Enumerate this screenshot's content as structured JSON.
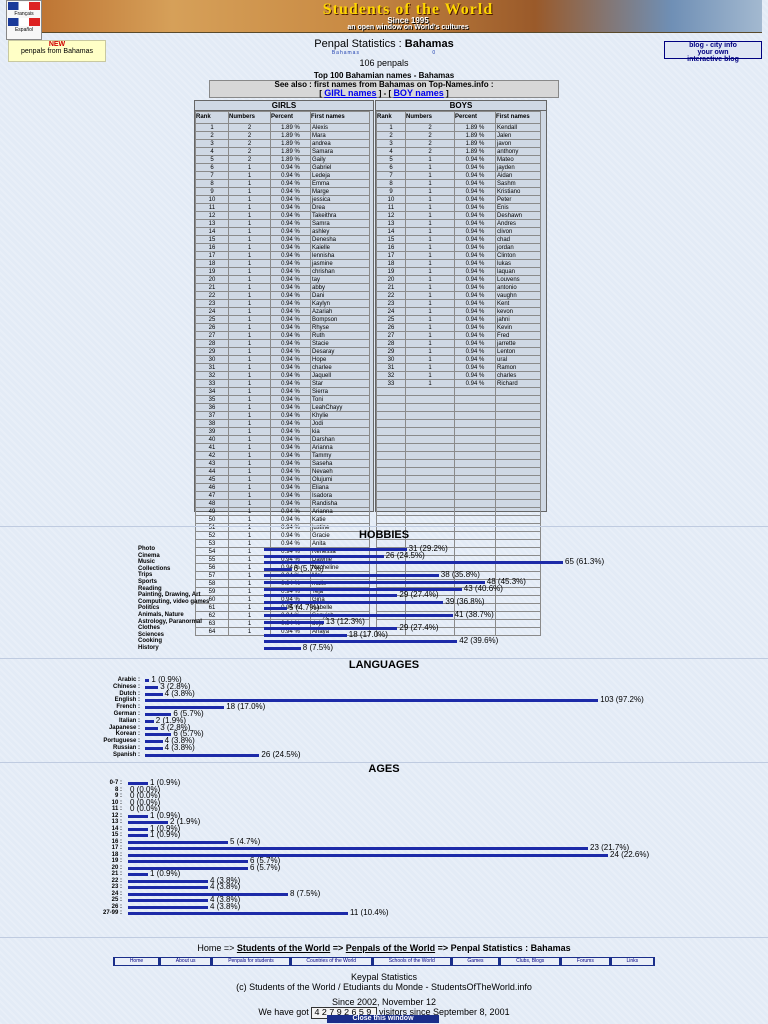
{
  "banner": {
    "title": "Students of the World",
    "since": "Since 1995",
    "tagline": "an open window on World's cultures"
  },
  "flags": {
    "fr": "Français",
    "es": "Español"
  },
  "penpal_box": {
    "new": "NEW",
    "text": "penpals from Bahamas"
  },
  "blog_box": {
    "line1": "blog - city info",
    "line2": "your own",
    "line3": "interactive blog"
  },
  "page": {
    "title_prefix": "Penpal Statistics :",
    "title_country": "Bahamas",
    "subtitle": "Bahamas",
    "subtitle_count": "0",
    "count": "106 penpals",
    "top_names": "Top 100 Bahamian names - Bahamas",
    "see_also": "See also : first names from Bahamas on Top-Names.info :",
    "girl_link": "GIRL names",
    "boy_link": "BOY names"
  },
  "tables": {
    "girls_header": "GIRLS",
    "boys_header": "BOYS",
    "columns": [
      "Rank",
      "Numbers",
      "Percent",
      "First names"
    ],
    "girls": [
      [
        "1",
        "2",
        "1.89 %",
        "Alexis"
      ],
      [
        "2",
        "2",
        "1.89 %",
        "Mara"
      ],
      [
        "3",
        "2",
        "1.89 %",
        "andrea"
      ],
      [
        "4",
        "2",
        "1.89 %",
        "Samara"
      ],
      [
        "5",
        "2",
        "1.89 %",
        "Gaily"
      ],
      [
        "6",
        "1",
        "0.94 %",
        "Gabriel"
      ],
      [
        "7",
        "1",
        "0.94 %",
        "Ledeja"
      ],
      [
        "8",
        "1",
        "0.94 %",
        "Emma"
      ],
      [
        "9",
        "1",
        "0.94 %",
        "Marge"
      ],
      [
        "10",
        "1",
        "0.94 %",
        "jessica"
      ],
      [
        "11",
        "1",
        "0.94 %",
        "Drea"
      ],
      [
        "12",
        "1",
        "0.94 %",
        "Takeithra"
      ],
      [
        "13",
        "1",
        "0.94 %",
        "Samra"
      ],
      [
        "14",
        "1",
        "0.94 %",
        "ashley"
      ],
      [
        "15",
        "1",
        "0.94 %",
        "Denesha"
      ],
      [
        "16",
        "1",
        "0.94 %",
        "Kaielle"
      ],
      [
        "17",
        "1",
        "0.94 %",
        "lennisha"
      ],
      [
        "18",
        "1",
        "0.94 %",
        "jasmine"
      ],
      [
        "19",
        "1",
        "0.94 %",
        "chrishan"
      ],
      [
        "20",
        "1",
        "0.94 %",
        "tay"
      ],
      [
        "21",
        "1",
        "0.94 %",
        "abby"
      ],
      [
        "22",
        "1",
        "0.94 %",
        "Dani"
      ],
      [
        "23",
        "1",
        "0.94 %",
        "Kaylyn"
      ],
      [
        "24",
        "1",
        "0.94 %",
        "Azariah"
      ],
      [
        "25",
        "1",
        "0.94 %",
        "Bompson"
      ],
      [
        "26",
        "1",
        "0.94 %",
        "Rhyse"
      ],
      [
        "27",
        "1",
        "0.94 %",
        "Ruth"
      ],
      [
        "28",
        "1",
        "0.94 %",
        "Stacie"
      ],
      [
        "29",
        "1",
        "0.94 %",
        "Desaray"
      ],
      [
        "30",
        "1",
        "0.94 %",
        "Hope"
      ],
      [
        "31",
        "1",
        "0.94 %",
        "charlee"
      ],
      [
        "32",
        "1",
        "0.94 %",
        "Jaquell"
      ],
      [
        "33",
        "1",
        "0.94 %",
        "Star"
      ],
      [
        "34",
        "1",
        "0.94 %",
        "Sierra"
      ],
      [
        "35",
        "1",
        "0.94 %",
        "Toni"
      ],
      [
        "36",
        "1",
        "0.94 %",
        "LeahChayy"
      ],
      [
        "37",
        "1",
        "0.94 %",
        "Khylie"
      ],
      [
        "38",
        "1",
        "0.94 %",
        "Jodi"
      ],
      [
        "39",
        "1",
        "0.94 %",
        "kia"
      ],
      [
        "40",
        "1",
        "0.94 %",
        "Darshan"
      ],
      [
        "41",
        "1",
        "0.94 %",
        "Arianna"
      ],
      [
        "42",
        "1",
        "0.94 %",
        "Tammy"
      ],
      [
        "43",
        "1",
        "0.94 %",
        "Saseha"
      ],
      [
        "44",
        "1",
        "0.94 %",
        "Nevaeh"
      ],
      [
        "45",
        "1",
        "0.94 %",
        "Olujumi"
      ],
      [
        "46",
        "1",
        "0.94 %",
        "Eliana"
      ],
      [
        "47",
        "1",
        "0.94 %",
        "Isadora"
      ],
      [
        "48",
        "1",
        "0.94 %",
        "Randisha"
      ],
      [
        "49",
        "1",
        "0.94 %",
        "Arianna"
      ],
      [
        "50",
        "1",
        "0.94 %",
        "Katie"
      ],
      [
        "51",
        "1",
        "0.94 %",
        "justine"
      ],
      [
        "52",
        "1",
        "0.94 %",
        "Gracie"
      ],
      [
        "53",
        "1",
        "0.94 %",
        "Anita"
      ],
      [
        "54",
        "1",
        "0.94 %",
        "Renessa"
      ],
      [
        "55",
        "1",
        "0.94 %",
        "Dawnie"
      ],
      [
        "56",
        "1",
        "0.94 %",
        "Nacheline"
      ],
      [
        "57",
        "1",
        "0.94 %",
        "Mai"
      ],
      [
        "58",
        "1",
        "0.94 %",
        "maile"
      ],
      [
        "59",
        "1",
        "0.94 %",
        "Teja"
      ],
      [
        "60",
        "1",
        "0.94 %",
        "Gina"
      ],
      [
        "61",
        "1",
        "0.94 %",
        "isabelle"
      ],
      [
        "62",
        "1",
        "0.94 %",
        "Sanyjah"
      ],
      [
        "63",
        "1",
        "0.94 %",
        "deja"
      ],
      [
        "64",
        "1",
        "0.94 %",
        "Anaya"
      ]
    ],
    "boys": [
      [
        "1",
        "2",
        "1.89 %",
        "Kendall"
      ],
      [
        "2",
        "2",
        "1.89 %",
        "Jalen"
      ],
      [
        "3",
        "2",
        "1.89 %",
        "javon"
      ],
      [
        "4",
        "2",
        "1.89 %",
        "anthony"
      ],
      [
        "5",
        "1",
        "0.94 %",
        "Mateo"
      ],
      [
        "6",
        "1",
        "0.94 %",
        "jayden"
      ],
      [
        "7",
        "1",
        "0.94 %",
        "Aidan"
      ],
      [
        "8",
        "1",
        "0.94 %",
        "Sashm"
      ],
      [
        "9",
        "1",
        "0.94 %",
        "Kristiano"
      ],
      [
        "10",
        "1",
        "0.94 %",
        "Peter"
      ],
      [
        "11",
        "1",
        "0.94 %",
        "Enis"
      ],
      [
        "12",
        "1",
        "0.94 %",
        "Deshawn"
      ],
      [
        "13",
        "1",
        "0.94 %",
        "Andres"
      ],
      [
        "14",
        "1",
        "0.94 %",
        "clivon"
      ],
      [
        "15",
        "1",
        "0.94 %",
        "chad"
      ],
      [
        "16",
        "1",
        "0.94 %",
        "jordan"
      ],
      [
        "17",
        "1",
        "0.94 %",
        "Clinton"
      ],
      [
        "18",
        "1",
        "0.94 %",
        "lukas"
      ],
      [
        "19",
        "1",
        "0.94 %",
        "laquan"
      ],
      [
        "20",
        "1",
        "0.94 %",
        "Louvens"
      ],
      [
        "21",
        "1",
        "0.94 %",
        "antonio"
      ],
      [
        "22",
        "1",
        "0.94 %",
        "vaughn"
      ],
      [
        "23",
        "1",
        "0.94 %",
        "Kent"
      ],
      [
        "24",
        "1",
        "0.94 %",
        "kevon"
      ],
      [
        "25",
        "1",
        "0.94 %",
        "jahni"
      ],
      [
        "26",
        "1",
        "0.94 %",
        "Kevin"
      ],
      [
        "27",
        "1",
        "0.94 %",
        "Fred"
      ],
      [
        "28",
        "1",
        "0.94 %",
        "jarrette"
      ],
      [
        "29",
        "1",
        "0.94 %",
        "Lenton"
      ],
      [
        "30",
        "1",
        "0.94 %",
        "ural"
      ],
      [
        "31",
        "1",
        "0.94 %",
        "Ramon"
      ],
      [
        "32",
        "1",
        "0.94 %",
        "charles"
      ],
      [
        "33",
        "1",
        "0.94 %",
        "Richard"
      ]
    ]
  },
  "chart_data": [
    {
      "type": "bar",
      "title": "HOBBIES",
      "categories": [
        "Photo",
        "Cinema",
        "Music",
        "Collections",
        "Trips",
        "Sports",
        "Reading",
        "Painting, Drawing, Art",
        "Computing, video games",
        "Politics",
        "Animals, Nature",
        "Astrology, Paranormal",
        "Clothes",
        "Sciences",
        "Cooking",
        "History"
      ],
      "values": [
        31,
        26,
        65,
        6,
        38,
        48,
        43,
        29,
        39,
        5,
        41,
        13,
        29,
        18,
        42,
        8
      ],
      "labels": [
        "31 (29.2%)",
        "26 (24.5%)",
        "65 (61.3%)",
        "6 (5.7%)",
        "38 (35.8%)",
        "48 (45.3%)",
        "43 (40.6%)",
        "29 (27.4%)",
        "39 (36.8%)",
        "5 (4.7%)",
        "41 (38.7%)",
        "13 (12.3%)",
        "29 (27.4%)",
        "18 (17.0%)",
        "42 (39.6%)",
        "8 (7.5%)"
      ]
    },
    {
      "type": "bar",
      "title": "LANGUAGES",
      "categories": [
        "Arabic :",
        "Chinese :",
        "Dutch :",
        "English :",
        "French :",
        "German :",
        "Italian :",
        "Japanese :",
        "Korean :",
        "Portuguese :",
        "Russian :",
        "Spanish :"
      ],
      "values": [
        1,
        3,
        4,
        103,
        18,
        6,
        2,
        3,
        6,
        4,
        4,
        26
      ],
      "labels": [
        "1 (0.9%)",
        "3 (2.8%)",
        "4 (3.8%)",
        "103 (97.2%)",
        "18 (17.0%)",
        "6 (5.7%)",
        "2 (1.9%)",
        "3 (2.8%)",
        "6 (5.7%)",
        "4 (3.8%)",
        "4 (3.8%)",
        "26 (24.5%)"
      ]
    },
    {
      "type": "bar",
      "title": "AGES",
      "categories": [
        "0-7 :",
        "8 :",
        "9 :",
        "10 :",
        "11 :",
        "12 :",
        "13 :",
        "14 :",
        "15 :",
        "16 :",
        "17 :",
        "18 :",
        "19 :",
        "20 :",
        "21 :",
        "22 :",
        "23 :",
        "24 :",
        "25 :",
        "26 :",
        "27-99 :"
      ],
      "values": [
        1,
        0,
        0,
        0,
        0,
        1,
        2,
        1,
        1,
        5,
        23,
        24,
        6,
        6,
        1,
        4,
        4,
        8,
        4,
        4,
        11
      ],
      "labels": [
        "1 (0.9%)",
        "0 (0.0%)",
        "0 (0.0%)",
        "0 (0.0%)",
        "0 (0.0%)",
        "1 (0.9%)",
        "2 (1.9%)",
        "1 (0.9%)",
        "1 (0.9%)",
        "5 (4.7%)",
        "23 (21.7%)",
        "24 (22.6%)",
        "6 (5.7%)",
        "6 (5.7%)",
        "1 (0.9%)",
        "4 (3.8%)",
        "4 (3.8%)",
        "8 (7.5%)",
        "4 (3.8%)",
        "4 (3.8%)",
        "11 (10.4%)"
      ]
    }
  ],
  "footer": {
    "home": "Home =>",
    "crumb1": "Students of the World",
    "arrow": "=>",
    "crumb2": "Penpals of the World",
    "crumb3": "=> Penpal Statistics : Bahamas",
    "nav": [
      "Home",
      "About us",
      "Penpals for students",
      "Countries of the World",
      "Schools of the World",
      "Games",
      "Clubs, Blogs",
      "Forums",
      "Links"
    ],
    "keypal": "Keypal Statistics",
    "copyright": "(c) Students of the World / Etudiants du Monde - StudentsOfTheWorld.info",
    "since": "Since 2002, November 12",
    "visitors_prefix": "We have got",
    "visitors_count": "42792659",
    "visitors_suffix": "visitors since September 8, 2001",
    "close": "Close this window"
  }
}
